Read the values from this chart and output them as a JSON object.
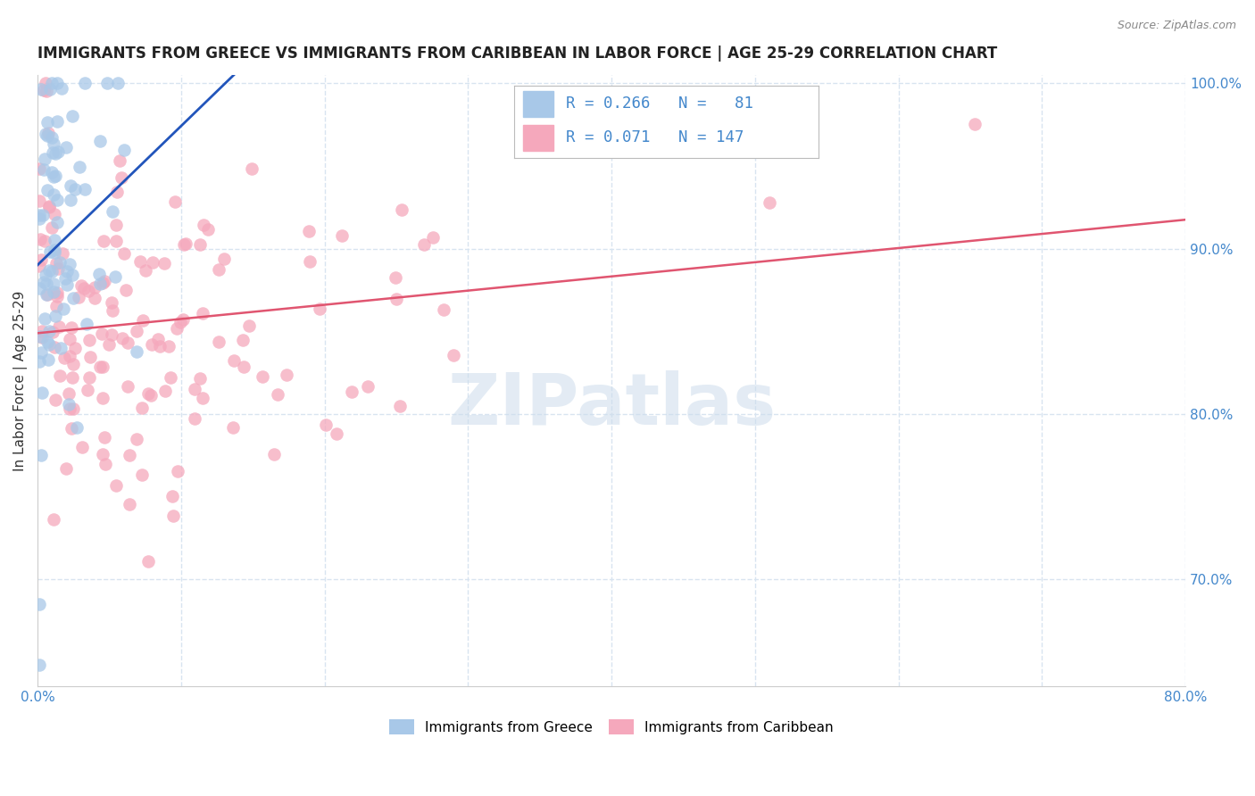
{
  "title": "IMMIGRANTS FROM GREECE VS IMMIGRANTS FROM CARIBBEAN IN LABOR FORCE | AGE 25-29 CORRELATION CHART",
  "source": "Source: ZipAtlas.com",
  "ylabel": "In Labor Force | Age 25-29",
  "legend_labels": [
    "Immigrants from Greece",
    "Immigrants from Caribbean"
  ],
  "xlim": [
    0.0,
    0.8
  ],
  "ylim": [
    0.635,
    1.005
  ],
  "right_yticks": [
    1.0,
    0.9,
    0.8,
    0.7
  ],
  "right_yticklabels": [
    "100.0%",
    "90.0%",
    "80.0%",
    "70.0%"
  ],
  "xtick_positions": [
    0.0,
    0.1,
    0.2,
    0.3,
    0.4,
    0.5,
    0.6,
    0.7,
    0.8
  ],
  "xtick_labels": [
    "0.0%",
    "",
    "",
    "",
    "",
    "",
    "",
    "",
    "80.0%"
  ],
  "watermark": "ZIPatlas",
  "greece_R": 0.266,
  "greece_N": 81,
  "caribbean_R": 0.071,
  "caribbean_N": 147,
  "greece_color": "#a8c8e8",
  "caribbean_color": "#f5a8bc",
  "greece_line_color": "#2255bb",
  "caribbean_line_color": "#e05570",
  "title_color": "#222222",
  "axis_label_color": "#333333",
  "tick_color_blue": "#4488cc",
  "grid_color": "#d8e4f0",
  "background_color": "#ffffff"
}
